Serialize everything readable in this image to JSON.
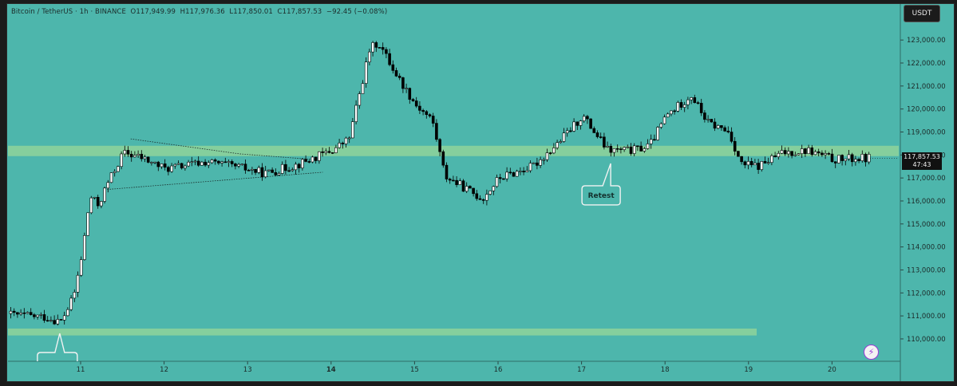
{
  "header": {
    "symbol": "Bitcoin / TetherUS · 1h · BINANCE",
    "open": "O117,949.99",
    "high": "H117,976.36",
    "low": "L117,850.01",
    "close": "C117,857.53",
    "change": "−92.45 (−0.08%)"
  },
  "currency_badge": "USDT",
  "price_label": {
    "price": "117,857.53",
    "countdown": "47:43"
  },
  "annotation_label": "Retest",
  "icons": {
    "bolt": "lightning-icon"
  },
  "colors": {
    "background": "#4db6ac",
    "zone": "#8fd49a",
    "candle_up": "#ffffff",
    "candle_down": "#000000",
    "text": "#1c2b2a"
  },
  "chart_data": {
    "type": "candlestick",
    "ylim": [
      109200,
      123700
    ],
    "y_ticks": [
      "123,000.00",
      "122,000.00",
      "121,000.00",
      "120,000.00",
      "119,000.00",
      "118,000.00",
      "117,000.00",
      "116,000.00",
      "115,000.00",
      "114,000.00",
      "113,000.00",
      "112,000.00",
      "111,000.00",
      "110,000.00"
    ],
    "x_ticks": [
      "11",
      "12",
      "13",
      "14",
      "15",
      "16",
      "17",
      "18",
      "19",
      "20"
    ],
    "zones": [
      {
        "label": "resistance-zone",
        "from": 117950,
        "to": 118400
      },
      {
        "label": "support-zone",
        "from": 110150,
        "to": 110450
      }
    ],
    "triangle": {
      "upper": [
        [
          11.6,
          118700
        ],
        [
          12.9,
          118050
        ],
        [
          13.8,
          117800
        ]
      ],
      "lower": [
        [
          11.32,
          116500
        ],
        [
          13.9,
          117250
        ]
      ]
    },
    "annotations": [
      {
        "text": "Retest",
        "at": [
          17.33,
          117700
        ]
      }
    ],
    "key_prices": [
      {
        "x": 10.0,
        "price": 111100
      },
      {
        "x": 10.55,
        "price": 110950
      },
      {
        "x": 10.75,
        "price": 110750
      },
      {
        "x": 10.9,
        "price": 111800
      },
      {
        "x": 11.0,
        "price": 113600
      },
      {
        "x": 11.1,
        "price": 116200
      },
      {
        "x": 11.2,
        "price": 115800
      },
      {
        "x": 11.3,
        "price": 116700
      },
      {
        "x": 11.5,
        "price": 118100
      },
      {
        "x": 11.7,
        "price": 117900
      },
      {
        "x": 12.0,
        "price": 117400
      },
      {
        "x": 12.5,
        "price": 117700
      },
      {
        "x": 12.9,
        "price": 117450
      },
      {
        "x": 13.2,
        "price": 117200
      },
      {
        "x": 13.6,
        "price": 117600
      },
      {
        "x": 14.0,
        "price": 118200
      },
      {
        "x": 14.2,
        "price": 118700
      },
      {
        "x": 14.45,
        "price": 122600
      },
      {
        "x": 14.55,
        "price": 122900
      },
      {
        "x": 14.8,
        "price": 121300
      },
      {
        "x": 15.0,
        "price": 120200
      },
      {
        "x": 15.2,
        "price": 119500
      },
      {
        "x": 15.35,
        "price": 117100
      },
      {
        "x": 15.7,
        "price": 116300
      },
      {
        "x": 15.8,
        "price": 116100
      },
      {
        "x": 16.0,
        "price": 117000
      },
      {
        "x": 16.4,
        "price": 117500
      },
      {
        "x": 16.7,
        "price": 118500
      },
      {
        "x": 17.0,
        "price": 119700
      },
      {
        "x": 17.3,
        "price": 118200
      },
      {
        "x": 17.6,
        "price": 118200
      },
      {
        "x": 17.8,
        "price": 118400
      },
      {
        "x": 18.0,
        "price": 119700
      },
      {
        "x": 18.3,
        "price": 120600
      },
      {
        "x": 18.5,
        "price": 119400
      },
      {
        "x": 18.75,
        "price": 119000
      },
      {
        "x": 18.9,
        "price": 117600
      },
      {
        "x": 19.1,
        "price": 117500
      },
      {
        "x": 19.4,
        "price": 118100
      },
      {
        "x": 19.7,
        "price": 118200
      },
      {
        "x": 20.0,
        "price": 117800
      },
      {
        "x": 20.4,
        "price": 117860
      }
    ]
  }
}
